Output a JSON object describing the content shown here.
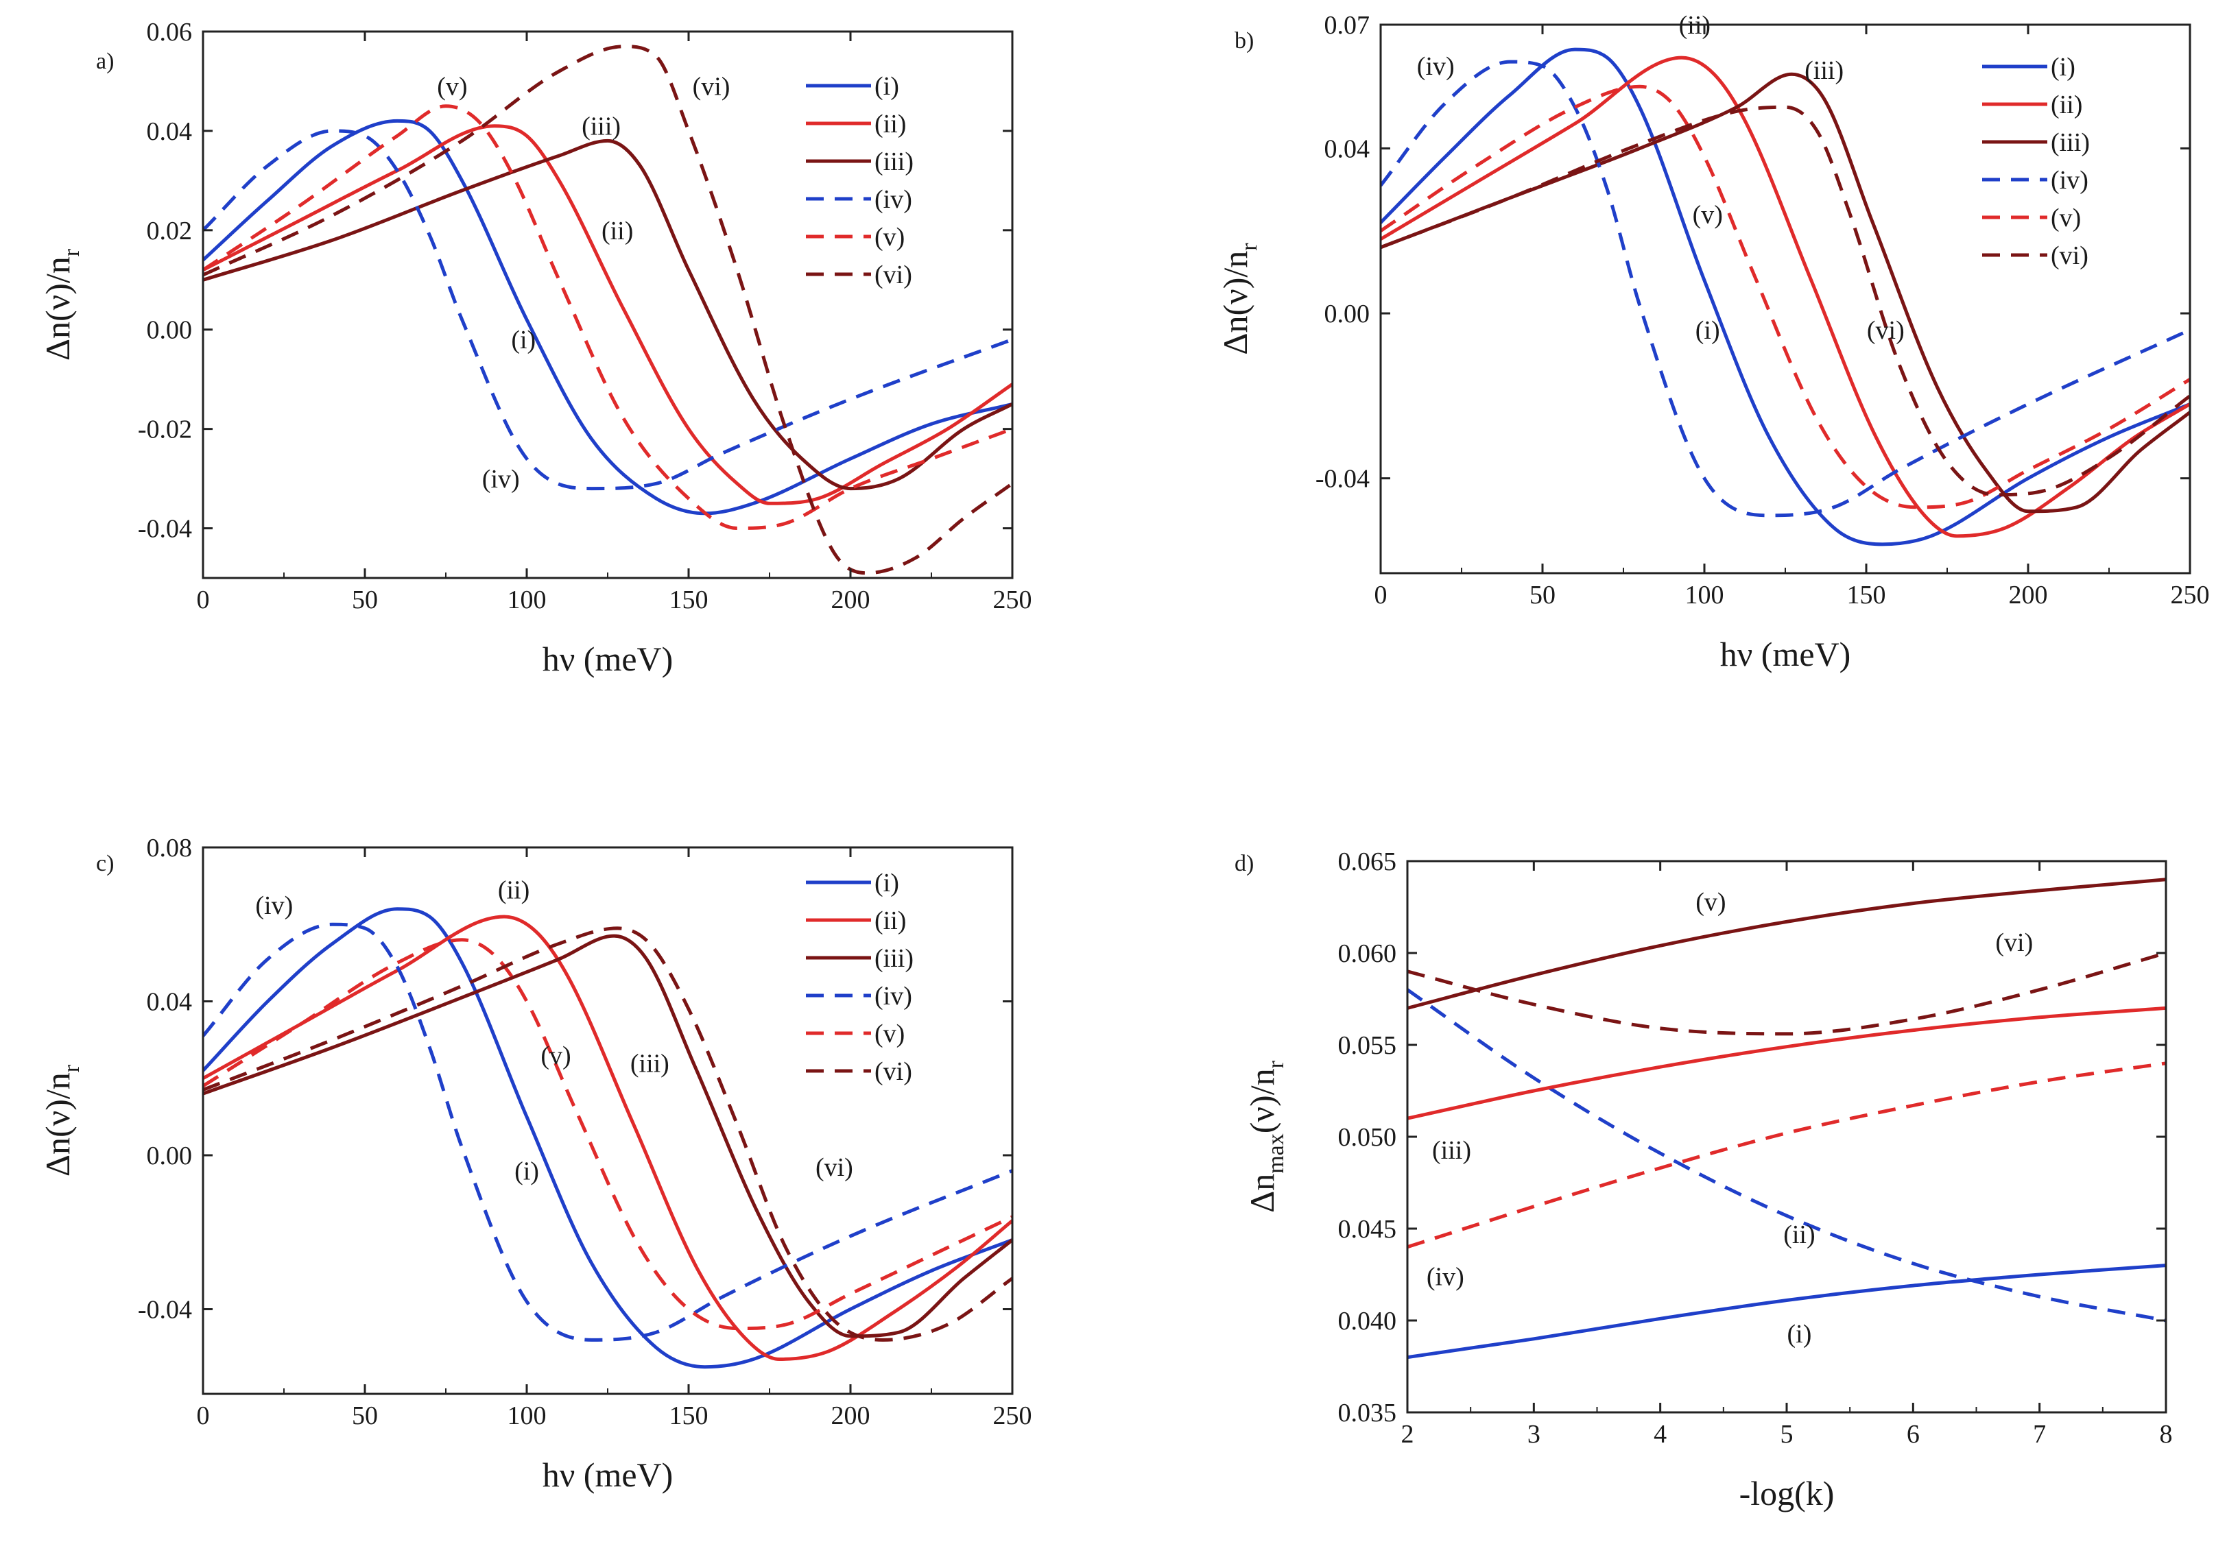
{
  "colors": {
    "blue": "#1f3fc9",
    "red": "#e02a2a",
    "darkred": "#7a1414",
    "axis": "#222222"
  },
  "chart_data": [
    {
      "type": "line",
      "panel": "a)",
      "xlabel": "hν (meV)",
      "ylabel_main": "Δn(ν)/n",
      "ylabel_sub": "r",
      "xlim": [
        0,
        250
      ],
      "ylim": [
        -0.05,
        0.06
      ],
      "xticks": [
        0,
        50,
        100,
        150,
        200,
        250
      ],
      "xtick_labels": [
        "0",
        "50",
        "100",
        "150",
        "200",
        "250"
      ],
      "yticks": [
        -0.04,
        -0.02,
        0.0,
        0.02,
        0.04,
        0.06
      ],
      "ytick_labels": [
        "-0.04",
        "-0.02",
        "0.00",
        "0.02",
        "0.04",
        "0.06"
      ],
      "legend": "top-right",
      "series": [
        {
          "name": "(i)",
          "color": "blue",
          "dash": false,
          "x": [
            0,
            20,
            40,
            60,
            70,
            80,
            100,
            120,
            140,
            155,
            170,
            200,
            225,
            250
          ],
          "y": [
            0.014,
            0.026,
            0.037,
            0.042,
            0.04,
            0.03,
            0.002,
            -0.022,
            -0.034,
            -0.037,
            -0.035,
            -0.026,
            -0.019,
            -0.015
          ]
        },
        {
          "name": "(ii)",
          "color": "red",
          "dash": false,
          "x": [
            0,
            30,
            60,
            90,
            100,
            110,
            130,
            150,
            165,
            175,
            190,
            210,
            230,
            250
          ],
          "y": [
            0.012,
            0.022,
            0.032,
            0.041,
            0.039,
            0.03,
            0.004,
            -0.02,
            -0.031,
            -0.035,
            -0.034,
            -0.027,
            -0.02,
            -0.011
          ]
        },
        {
          "name": "(iii)",
          "color": "darkred",
          "dash": false,
          "x": [
            0,
            40,
            80,
            110,
            125,
            135,
            150,
            170,
            185,
            200,
            215,
            235,
            250
          ],
          "y": [
            0.01,
            0.018,
            0.028,
            0.035,
            0.038,
            0.033,
            0.012,
            -0.014,
            -0.026,
            -0.032,
            -0.03,
            -0.02,
            -0.015
          ]
        },
        {
          "name": "(iv)",
          "color": "blue",
          "dash": true,
          "x": [
            0,
            20,
            40,
            50,
            60,
            70,
            80,
            100,
            120,
            140,
            160,
            200,
            250
          ],
          "y": [
            0.02,
            0.033,
            0.04,
            0.039,
            0.032,
            0.019,
            0.002,
            -0.026,
            -0.032,
            -0.031,
            -0.025,
            -0.014,
            -0.002
          ]
        },
        {
          "name": "(v)",
          "color": "red",
          "dash": true,
          "x": [
            0,
            30,
            60,
            75,
            85,
            95,
            110,
            130,
            150,
            165,
            180,
            200,
            225,
            250
          ],
          "y": [
            0.012,
            0.025,
            0.039,
            0.045,
            0.042,
            0.032,
            0.01,
            -0.018,
            -0.034,
            -0.04,
            -0.039,
            -0.032,
            -0.026,
            -0.02
          ]
        },
        {
          "name": "(vi)",
          "color": "darkred",
          "dash": true,
          "x": [
            0,
            40,
            80,
            110,
            130,
            140,
            150,
            165,
            180,
            195,
            205,
            220,
            235,
            250
          ],
          "y": [
            0.011,
            0.023,
            0.038,
            0.052,
            0.057,
            0.055,
            0.04,
            0.012,
            -0.02,
            -0.045,
            -0.049,
            -0.046,
            -0.038,
            -0.031
          ]
        }
      ],
      "annotations": [
        {
          "text": "(v)",
          "x": 77,
          "y": 0.049
        },
        {
          "text": "(vi)",
          "x": 157,
          "y": 0.049
        },
        {
          "text": "(iii)",
          "x": 123,
          "y": 0.041
        },
        {
          "text": "(ii)",
          "x": 128,
          "y": 0.02
        },
        {
          "text": "(i)",
          "x": 99,
          "y": -0.002
        },
        {
          "text": "(iv)",
          "x": 92,
          "y": -0.03
        }
      ]
    },
    {
      "type": "line",
      "panel": "b)",
      "xlabel": "hν (meV)",
      "ylabel_main": "Δn(ν)/n",
      "ylabel_sub": "r",
      "xlim": [
        0,
        250
      ],
      "ylim": [
        -0.063,
        0.07
      ],
      "xticks": [
        0,
        50,
        100,
        150,
        200,
        250
      ],
      "xtick_labels": [
        "0",
        "50",
        "100",
        "150",
        "200",
        "250"
      ],
      "yticks": [
        -0.04,
        0.0,
        0.04,
        0.07
      ],
      "ytick_labels": [
        "-0.04",
        "0.00",
        "0.04",
        "0.07"
      ],
      "legend": "top-right",
      "series": [
        {
          "name": "(i)",
          "color": "blue",
          "dash": false,
          "x": [
            0,
            20,
            40,
            60,
            70,
            80,
            100,
            120,
            140,
            155,
            170,
            200,
            225,
            250
          ],
          "y": [
            0.022,
            0.038,
            0.053,
            0.064,
            0.062,
            0.05,
            0.008,
            -0.03,
            -0.052,
            -0.056,
            -0.054,
            -0.04,
            -0.03,
            -0.022
          ]
        },
        {
          "name": "(ii)",
          "color": "red",
          "dash": false,
          "x": [
            0,
            30,
            60,
            93,
            103,
            113,
            133,
            153,
            168,
            178,
            193,
            213,
            233,
            250
          ],
          "y": [
            0.018,
            0.032,
            0.046,
            0.062,
            0.058,
            0.046,
            0.008,
            -0.03,
            -0.049,
            -0.054,
            -0.052,
            -0.042,
            -0.03,
            -0.022
          ]
        },
        {
          "name": "(iii)",
          "color": "darkred",
          "dash": false,
          "x": [
            0,
            40,
            80,
            110,
            127,
            137,
            152,
            172,
            187,
            200,
            215,
            235,
            250
          ],
          "y": [
            0.016,
            0.028,
            0.04,
            0.05,
            0.058,
            0.052,
            0.022,
            -0.018,
            -0.038,
            -0.048,
            -0.047,
            -0.033,
            -0.024
          ]
        },
        {
          "name": "(iv)",
          "color": "blue",
          "dash": true,
          "x": [
            0,
            20,
            40,
            50,
            60,
            70,
            80,
            100,
            120,
            140,
            160,
            200,
            250
          ],
          "y": [
            0.031,
            0.051,
            0.061,
            0.06,
            0.05,
            0.03,
            0.002,
            -0.04,
            -0.049,
            -0.047,
            -0.038,
            -0.022,
            -0.004
          ]
        },
        {
          "name": "(v)",
          "color": "red",
          "dash": true,
          "x": [
            0,
            30,
            60,
            80,
            90,
            100,
            115,
            135,
            150,
            165,
            180,
            200,
            225,
            250
          ],
          "y": [
            0.02,
            0.036,
            0.05,
            0.055,
            0.051,
            0.038,
            0.01,
            -0.026,
            -0.042,
            -0.047,
            -0.046,
            -0.038,
            -0.028,
            -0.016
          ]
        },
        {
          "name": "(vi)",
          "color": "darkred",
          "dash": true,
          "x": [
            0,
            40,
            80,
            110,
            125,
            135,
            145,
            160,
            175,
            190,
            205,
            225,
            250
          ],
          "y": [
            0.016,
            0.028,
            0.041,
            0.049,
            0.05,
            0.044,
            0.024,
            -0.012,
            -0.036,
            -0.044,
            -0.043,
            -0.035,
            -0.02
          ]
        }
      ],
      "annotations": [
        {
          "text": "(iv)",
          "x": 17,
          "y": 0.06
        },
        {
          "text": "(ii)",
          "x": 97,
          "y": 0.07
        },
        {
          "text": "(iii)",
          "x": 137,
          "y": 0.059
        },
        {
          "text": "(v)",
          "x": 101,
          "y": 0.024
        },
        {
          "text": "(i)",
          "x": 101,
          "y": -0.004
        },
        {
          "text": "(vi)",
          "x": 156,
          "y": -0.004
        }
      ]
    },
    {
      "type": "line",
      "panel": "c)",
      "xlabel": "hν (meV)",
      "ylabel_main": "Δn(ν)/n",
      "ylabel_sub": "r",
      "xlim": [
        0,
        250
      ],
      "ylim": [
        -0.062,
        0.08
      ],
      "xticks": [
        0,
        50,
        100,
        150,
        200,
        250
      ],
      "xtick_labels": [
        "0",
        "50",
        "100",
        "150",
        "200",
        "250"
      ],
      "yticks": [
        -0.04,
        0.0,
        0.04,
        0.08
      ],
      "ytick_labels": [
        "-0.04",
        "0.00",
        "0.04",
        "0.08"
      ],
      "legend": "top-right",
      "series": [
        {
          "name": "(i)",
          "color": "blue",
          "dash": false,
          "x": [
            0,
            20,
            40,
            60,
            70,
            80,
            100,
            120,
            140,
            155,
            170,
            200,
            225,
            250
          ],
          "y": [
            0.022,
            0.04,
            0.055,
            0.064,
            0.062,
            0.05,
            0.01,
            -0.028,
            -0.05,
            -0.055,
            -0.053,
            -0.04,
            -0.03,
            -0.022
          ]
        },
        {
          "name": "(ii)",
          "color": "red",
          "dash": false,
          "x": [
            0,
            30,
            60,
            93,
            103,
            113,
            133,
            153,
            168,
            178,
            193,
            213,
            233,
            250
          ],
          "y": [
            0.02,
            0.034,
            0.048,
            0.062,
            0.058,
            0.046,
            0.008,
            -0.03,
            -0.048,
            -0.053,
            -0.051,
            -0.041,
            -0.029,
            -0.017
          ]
        },
        {
          "name": "(iii)",
          "color": "darkred",
          "dash": false,
          "x": [
            0,
            40,
            80,
            110,
            127,
            137,
            152,
            172,
            187,
            200,
            215,
            235,
            250
          ],
          "y": [
            0.016,
            0.028,
            0.041,
            0.051,
            0.057,
            0.051,
            0.023,
            -0.016,
            -0.038,
            -0.047,
            -0.046,
            -0.032,
            -0.022
          ]
        },
        {
          "name": "(iv)",
          "color": "blue",
          "dash": true,
          "x": [
            0,
            20,
            40,
            50,
            60,
            70,
            80,
            100,
            120,
            140,
            160,
            200,
            250
          ],
          "y": [
            0.031,
            0.051,
            0.06,
            0.059,
            0.049,
            0.028,
            0.002,
            -0.038,
            -0.048,
            -0.046,
            -0.037,
            -0.021,
            -0.004
          ]
        },
        {
          "name": "(v)",
          "color": "red",
          "dash": true,
          "x": [
            0,
            30,
            60,
            80,
            90,
            100,
            115,
            135,
            150,
            165,
            180,
            200,
            225,
            250
          ],
          "y": [
            0.018,
            0.034,
            0.05,
            0.056,
            0.052,
            0.04,
            0.012,
            -0.024,
            -0.04,
            -0.045,
            -0.044,
            -0.036,
            -0.026,
            -0.016
          ]
        },
        {
          "name": "(vi)",
          "color": "darkred",
          "dash": true,
          "x": [
            0,
            40,
            80,
            110,
            128,
            138,
            150,
            165,
            180,
            195,
            210,
            230,
            250
          ],
          "y": [
            0.017,
            0.03,
            0.044,
            0.055,
            0.059,
            0.055,
            0.038,
            0.008,
            -0.024,
            -0.043,
            -0.048,
            -0.044,
            -0.032
          ]
        }
      ],
      "annotations": [
        {
          "text": "(iv)",
          "x": 22,
          "y": 0.065
        },
        {
          "text": "(ii)",
          "x": 96,
          "y": 0.069
        },
        {
          "text": "(v)",
          "x": 109,
          "y": 0.026
        },
        {
          "text": "(iii)",
          "x": 138,
          "y": 0.024
        },
        {
          "text": "(i)",
          "x": 100,
          "y": -0.004
        },
        {
          "text": "(vi)",
          "x": 195,
          "y": -0.003
        }
      ]
    },
    {
      "type": "line",
      "panel": "d)",
      "xlabel": "-log(k)",
      "ylabel_main": "Δn",
      "ylabel_sub": "max",
      "ylabel_tail": "(ν)/n",
      "ylabel_sub2": "r",
      "xlim": [
        2,
        8
      ],
      "ylim": [
        0.035,
        0.065
      ],
      "xticks": [
        2,
        3,
        4,
        5,
        6,
        7,
        8
      ],
      "xtick_labels": [
        "2",
        "3",
        "4",
        "5",
        "6",
        "7",
        "8"
      ],
      "yticks": [
        0.035,
        0.04,
        0.045,
        0.05,
        0.055,
        0.06,
        0.065
      ],
      "ytick_labels": [
        "0.035",
        "0.040",
        "0.045",
        "0.050",
        "0.055",
        "0.060",
        "0.065"
      ],
      "series": [
        {
          "name": "(i)",
          "color": "blue",
          "dash": false,
          "x": [
            2,
            3,
            4,
            5,
            6,
            7,
            8
          ],
          "y": [
            0.038,
            0.039,
            0.0401,
            0.0411,
            0.0419,
            0.0425,
            0.043
          ]
        },
        {
          "name": "(ii)",
          "color": "blue",
          "dash": true,
          "x": [
            2,
            3,
            4,
            5,
            6,
            7,
            8
          ],
          "y": [
            0.058,
            0.0532,
            0.0491,
            0.0457,
            0.0431,
            0.0413,
            0.04
          ]
        },
        {
          "name": "(iii)",
          "color": "red",
          "dash": false,
          "x": [
            2,
            3,
            4,
            5,
            6,
            7,
            8
          ],
          "y": [
            0.051,
            0.0525,
            0.0538,
            0.0549,
            0.0558,
            0.0565,
            0.057
          ]
        },
        {
          "name": "(iv)",
          "color": "red",
          "dash": true,
          "x": [
            2,
            3,
            4,
            5,
            6,
            7,
            8
          ],
          "y": [
            0.044,
            0.0462,
            0.0483,
            0.0502,
            0.0517,
            0.053,
            0.054
          ]
        },
        {
          "name": "(v)",
          "color": "darkred",
          "dash": false,
          "x": [
            2,
            3,
            4,
            5,
            6,
            7,
            8
          ],
          "y": [
            0.057,
            0.0588,
            0.0604,
            0.0617,
            0.0627,
            0.0634,
            0.064
          ]
        },
        {
          "name": "(vi)",
          "color": "darkred",
          "dash": true,
          "x": [
            2,
            3,
            4,
            5,
            6,
            7,
            8
          ],
          "y": [
            0.059,
            0.0572,
            0.0559,
            0.0556,
            0.0564,
            0.058,
            0.06
          ]
        }
      ],
      "annotations": [
        {
          "text": "(v)",
          "x": 4.4,
          "y": 0.0628
        },
        {
          "text": "(vi)",
          "x": 6.8,
          "y": 0.0606
        },
        {
          "text": "(iii)",
          "x": 2.35,
          "y": 0.0493
        },
        {
          "text": "(iv)",
          "x": 2.3,
          "y": 0.0424
        },
        {
          "text": "(ii)",
          "x": 5.1,
          "y": 0.0447
        },
        {
          "text": "(i)",
          "x": 5.1,
          "y": 0.0393
        }
      ]
    }
  ]
}
